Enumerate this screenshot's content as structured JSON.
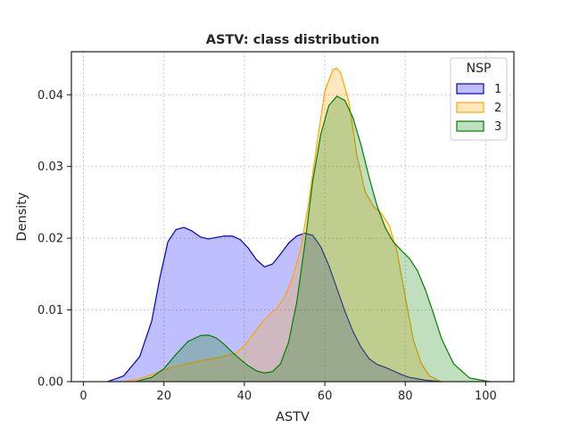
{
  "chart_data": {
    "type": "area",
    "title": "ASTV: class distribution",
    "xlabel": "ASTV",
    "ylabel": "Density",
    "xlim": [
      -3,
      107
    ],
    "ylim": [
      0,
      0.046
    ],
    "xticks": [
      0,
      20,
      40,
      60,
      80,
      100
    ],
    "xtick_labels": [
      "0",
      "20",
      "40",
      "60",
      "80",
      "100"
    ],
    "yticks": [
      0,
      0.01,
      0.02,
      0.03,
      0.04
    ],
    "ytick_labels": [
      "0.00",
      "0.01",
      "0.02",
      "0.03",
      "0.04"
    ],
    "grid": true,
    "legend": {
      "title": "NSP",
      "position": "top-right"
    },
    "series": [
      {
        "name": "1",
        "color": "#0000cc",
        "fill": "#0000ff",
        "x": [
          6,
          10,
          14,
          17,
          19,
          21,
          23,
          25,
          27,
          29,
          31,
          33,
          35,
          37,
          39,
          41,
          43,
          45,
          47,
          49,
          51,
          53,
          55,
          57,
          59,
          61,
          63,
          65,
          67,
          69,
          71,
          73,
          75,
          77,
          79,
          81,
          85,
          89
        ],
        "y": [
          0.0,
          0.0008,
          0.0035,
          0.0085,
          0.0145,
          0.0195,
          0.0212,
          0.0215,
          0.021,
          0.0202,
          0.0199,
          0.0201,
          0.0203,
          0.0203,
          0.0198,
          0.0186,
          0.017,
          0.016,
          0.0164,
          0.0178,
          0.0193,
          0.0203,
          0.0207,
          0.0204,
          0.0188,
          0.0162,
          0.013,
          0.0098,
          0.007,
          0.0048,
          0.0032,
          0.0024,
          0.002,
          0.0015,
          0.001,
          0.0006,
          0.0002,
          0.0
        ]
      },
      {
        "name": "2",
        "color": "#ffa500",
        "fill": "#ffa500",
        "x": [
          10,
          14,
          18,
          22,
          26,
          30,
          34,
          38,
          40,
          42,
          44,
          46,
          48,
          50,
          52,
          54,
          56,
          58,
          60,
          62,
          63,
          64,
          66,
          68,
          70,
          72,
          74,
          76,
          78,
          80,
          82,
          84,
          86,
          89
        ],
        "y": [
          0.0,
          0.0004,
          0.0012,
          0.002,
          0.0025,
          0.003,
          0.0034,
          0.004,
          0.005,
          0.0065,
          0.008,
          0.0092,
          0.0102,
          0.0118,
          0.0145,
          0.0185,
          0.025,
          0.033,
          0.0405,
          0.0435,
          0.0437,
          0.043,
          0.039,
          0.0315,
          0.0265,
          0.0245,
          0.0235,
          0.0218,
          0.018,
          0.0118,
          0.0058,
          0.0025,
          0.0008,
          0.0
        ]
      },
      {
        "name": "3",
        "color": "#008000",
        "fill": "#008000",
        "x": [
          13,
          17,
          20,
          23,
          26,
          29,
          31,
          33,
          35,
          37,
          39,
          41,
          43,
          45,
          47,
          49,
          51,
          53,
          55,
          57,
          59,
          61,
          63,
          65,
          67,
          69,
          71,
          73,
          75,
          77,
          79,
          81,
          83,
          85,
          87,
          89,
          92,
          96,
          101
        ],
        "y": [
          0.0,
          0.0006,
          0.0018,
          0.0038,
          0.0056,
          0.0064,
          0.0065,
          0.0061,
          0.0052,
          0.0041,
          0.0031,
          0.0022,
          0.0015,
          0.0012,
          0.0014,
          0.0025,
          0.0055,
          0.011,
          0.019,
          0.028,
          0.0345,
          0.0385,
          0.0398,
          0.0392,
          0.0368,
          0.033,
          0.0285,
          0.0245,
          0.0215,
          0.0195,
          0.0183,
          0.0172,
          0.0155,
          0.0128,
          0.0095,
          0.006,
          0.0025,
          0.0005,
          0.0
        ]
      }
    ]
  }
}
